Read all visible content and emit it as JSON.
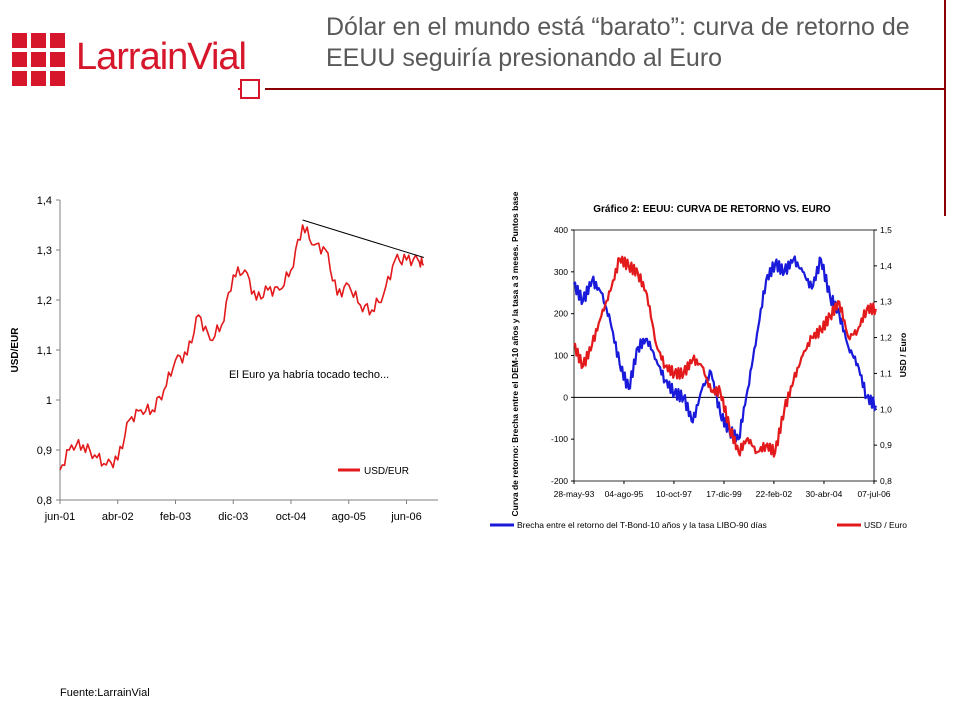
{
  "header": {
    "brand": "LarrainVial",
    "title": "Dólar en el mundo está “barato”: curva de retorno de EEUU seguiría presionando al Euro",
    "source": "Fuente:LarrainVial"
  },
  "colors": {
    "brand_red": "#d6162a",
    "rule_dark_red": "#8b0000",
    "series_red": "#e31a1c",
    "series_blue": "#1a1adb"
  },
  "chart_data": [
    {
      "type": "line",
      "title": "",
      "ylabel": "USD/EUR",
      "ylim": [
        0.8,
        1.4
      ],
      "yticks": [
        "1,4",
        "1,3",
        "1,2",
        "1,1",
        "1",
        "0,9",
        "0,8"
      ],
      "xticks": [
        "jun-01",
        "abr-02",
        "feb-03",
        "dic-03",
        "oct-04",
        "ago-05",
        "jun-06"
      ],
      "annotation": "El Euro ya habría tocado techo...",
      "legend": "bottom-right",
      "series": [
        {
          "name": "USD/EUR",
          "x": [
            "jun-01",
            "ago-01",
            "oct-01",
            "dic-01",
            "feb-02",
            "abr-02",
            "jun-02",
            "ago-02",
            "oct-02",
            "dic-02",
            "feb-03",
            "abr-03",
            "jun-03",
            "ago-03",
            "oct-03",
            "dic-03",
            "feb-04",
            "abr-04",
            "jun-04",
            "ago-04",
            "oct-04",
            "dic-04",
            "feb-05",
            "abr-05",
            "jun-05",
            "ago-05",
            "oct-05",
            "dic-05",
            "feb-06",
            "abr-06",
            "jun-06",
            "ago-06",
            "sep-06"
          ],
          "values": [
            0.86,
            0.91,
            0.91,
            0.89,
            0.87,
            0.88,
            0.96,
            0.98,
            0.98,
            1.02,
            1.08,
            1.09,
            1.17,
            1.12,
            1.15,
            1.25,
            1.26,
            1.2,
            1.22,
            1.22,
            1.26,
            1.35,
            1.31,
            1.3,
            1.21,
            1.23,
            1.19,
            1.18,
            1.21,
            1.28,
            1.28,
            1.28,
            1.27
          ]
        },
        {
          "name": "",
          "role": "trendline",
          "x": [
            "dic-04",
            "sep-06"
          ],
          "values": [
            1.36,
            1.285
          ]
        }
      ]
    },
    {
      "type": "line",
      "title": "Gráfico 2: EEUU: CURVA DE RETORNO VS. EURO",
      "ylabel": "Curva de retorno: Brecha entre el DEM-10 años y la tasa a 3 meses. Puntos base",
      "y2label": "USD / Euro",
      "ylim": [
        -200,
        400
      ],
      "y2lim": [
        0.8,
        1.5
      ],
      "yticks": [
        "400",
        "300",
        "200",
        "100",
        "0",
        "-100",
        "-200"
      ],
      "y2ticks": [
        "1,5",
        "1,4",
        "1,3",
        "1,2",
        "1,1",
        "1,0",
        "0,9",
        "0,8"
      ],
      "xticks": [
        "28-may-93",
        "04-ago-95",
        "10-oct-97",
        "17-dic-99",
        "22-feb-02",
        "30-abr-04",
        "07-jul-06"
      ],
      "legend": "bottom",
      "series": [
        {
          "name": "Brecha entre el retorno del T-Bond-10 años y la tasa LIBO-90 días",
          "axis": "left",
          "x": [
            1993.4,
            1993.8,
            1994.2,
            1994.6,
            1995.0,
            1995.4,
            1995.8,
            1996.2,
            1996.6,
            1997.0,
            1997.4,
            1997.8,
            1998.2,
            1998.6,
            1999.0,
            1999.4,
            1999.8,
            2000.2,
            2000.6,
            2001.0,
            2001.4,
            2001.8,
            2002.2,
            2002.6,
            2003.0,
            2003.4,
            2003.8,
            2004.2,
            2004.6,
            2005.0,
            2005.4,
            2005.8,
            2006.2,
            2006.6
          ],
          "values": [
            270,
            230,
            280,
            250,
            180,
            80,
            20,
            120,
            140,
            90,
            40,
            10,
            0,
            -60,
            20,
            60,
            -40,
            -80,
            -100,
            20,
            150,
            280,
            320,
            300,
            330,
            300,
            260,
            330,
            240,
            200,
            120,
            80,
            0,
            -20
          ]
        },
        {
          "name": "USD / Euro",
          "axis": "right",
          "x": [
            1993.4,
            1993.8,
            1994.2,
            1994.6,
            1995.0,
            1995.4,
            1995.8,
            1996.2,
            1996.6,
            1997.0,
            1997.4,
            1997.8,
            1998.2,
            1998.6,
            1999.0,
            1999.4,
            1999.8,
            2000.2,
            2000.6,
            2001.0,
            2001.4,
            2001.8,
            2002.2,
            2002.6,
            2003.0,
            2003.4,
            2003.8,
            2004.2,
            2004.6,
            2005.0,
            2005.4,
            2005.8,
            2006.2,
            2006.6
          ],
          "values": [
            1.18,
            1.12,
            1.18,
            1.26,
            1.33,
            1.42,
            1.4,
            1.38,
            1.32,
            1.18,
            1.12,
            1.1,
            1.1,
            1.14,
            1.12,
            1.05,
            1.05,
            0.95,
            0.88,
            0.92,
            0.88,
            0.9,
            0.88,
            1.0,
            1.08,
            1.15,
            1.2,
            1.22,
            1.26,
            1.3,
            1.2,
            1.22,
            1.28,
            1.28
          ]
        }
      ]
    }
  ]
}
